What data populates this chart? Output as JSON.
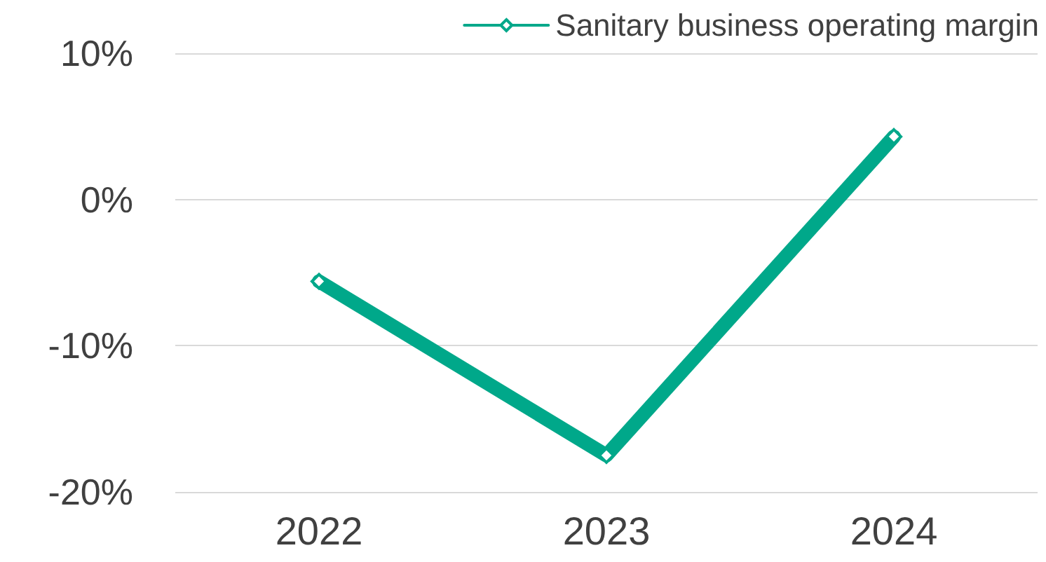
{
  "chart_data": {
    "type": "line",
    "categories": [
      "2022",
      "2023",
      "2024"
    ],
    "series": [
      {
        "name": "Sanitary business operating margin",
        "color": "#00a88a",
        "values": [
          -5.6,
          -17.5,
          4.3
        ]
      }
    ],
    "ylim": [
      -20,
      10
    ],
    "yticks": [
      {
        "value": -20,
        "label": "-20%"
      },
      {
        "value": -10,
        "label": "-10%"
      },
      {
        "value": 0,
        "label": "0%"
      },
      {
        "value": 10,
        "label": "10%"
      }
    ],
    "grid": "y",
    "legend": "top right",
    "marker": "diamond",
    "line_style": "solid"
  }
}
